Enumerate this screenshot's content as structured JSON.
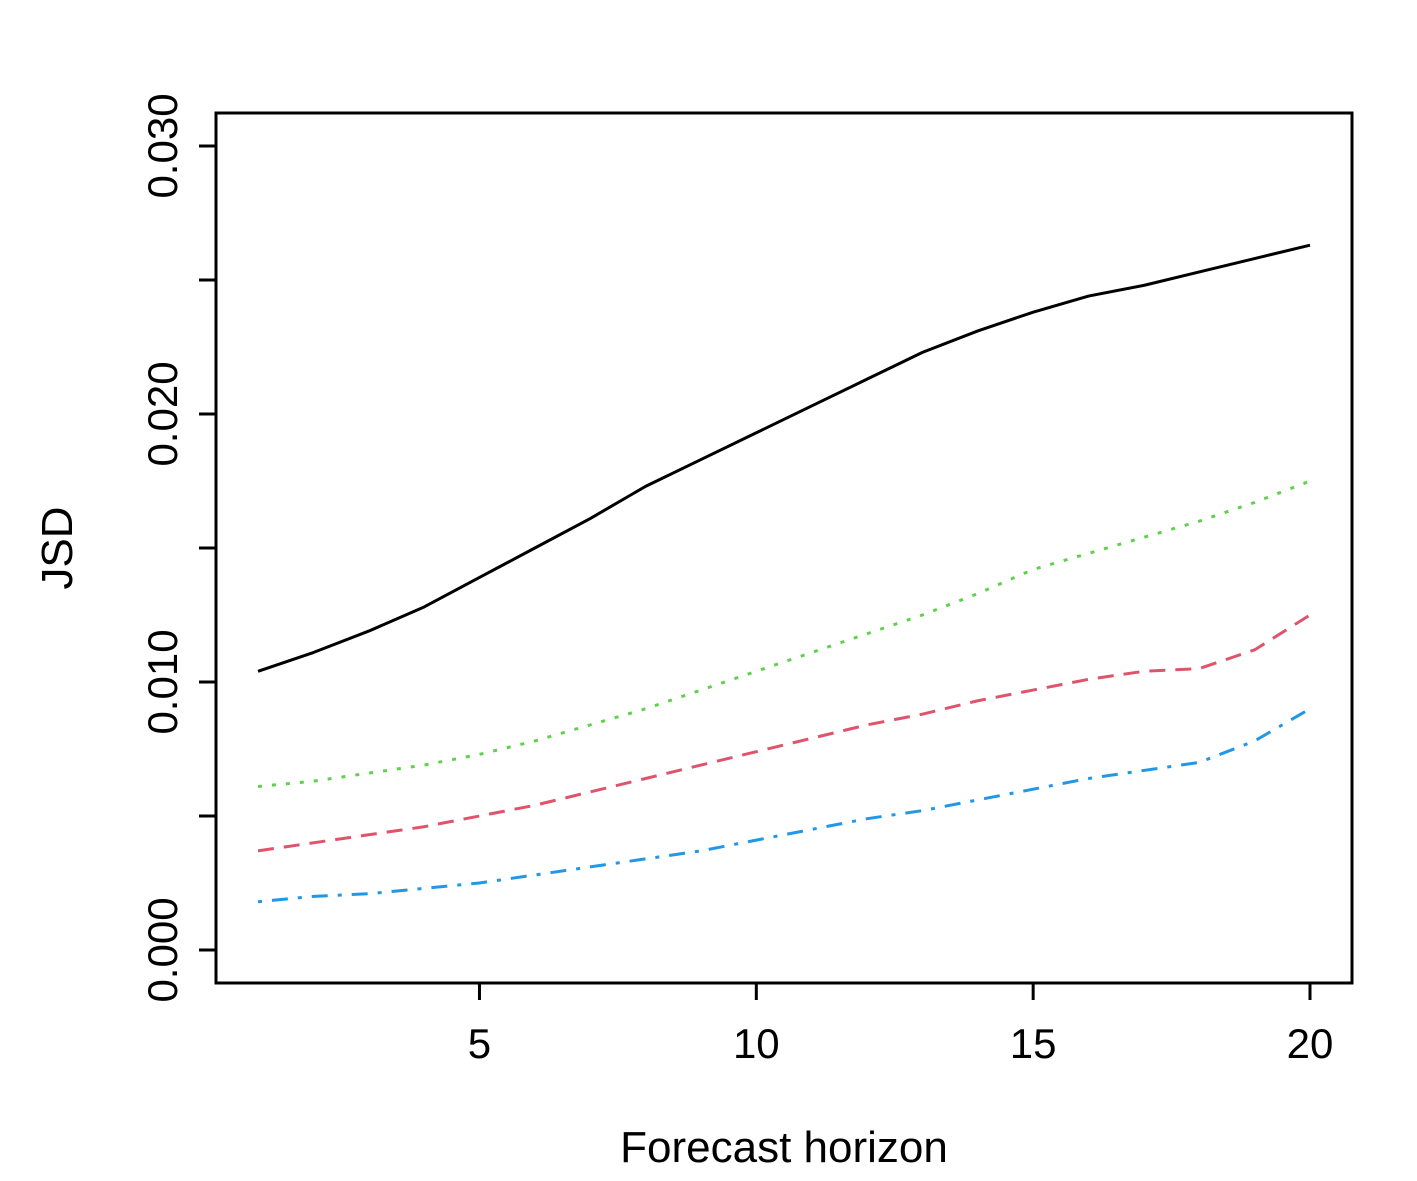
{
  "chart_data": {
    "type": "line",
    "title": "",
    "xlabel": "Forecast horizon",
    "ylabel": "JSD",
    "xlim": [
      0.5,
      20.8
    ],
    "ylim": [
      -0.0012,
      0.0312
    ],
    "x_ticks": [
      5,
      10,
      15,
      20
    ],
    "x_tick_labels": [
      "5",
      "10",
      "15",
      "20"
    ],
    "y_ticks": [
      0.0,
      0.005,
      0.01,
      0.015,
      0.02,
      0.025,
      0.03
    ],
    "y_tick_labels": [
      "0.000",
      "",
      "0.010",
      "",
      "0.020",
      "",
      "0.030"
    ],
    "grid": false,
    "legend": "none",
    "x": [
      1,
      2,
      3,
      4,
      5,
      6,
      7,
      8,
      9,
      10,
      11,
      12,
      13,
      14,
      15,
      16,
      17,
      18,
      19,
      20
    ],
    "series": [
      {
        "color": "#000000",
        "dash": "solid",
        "values": [
          0.0104,
          0.0111,
          0.0119,
          0.0128,
          0.0139,
          0.015,
          0.0161,
          0.0173,
          0.0183,
          0.0193,
          0.0203,
          0.0213,
          0.0223,
          0.0231,
          0.0238,
          0.0244,
          0.0248,
          0.0253,
          0.0258,
          0.0263
        ]
      },
      {
        "color": "#61D04F",
        "dash": "dotted",
        "values": [
          0.0061,
          0.0063,
          0.0066,
          0.0069,
          0.0073,
          0.0078,
          0.0084,
          0.009,
          0.0097,
          0.0104,
          0.0111,
          0.0118,
          0.0125,
          0.0133,
          0.0142,
          0.0148,
          0.0154,
          0.016,
          0.0167,
          0.0175
        ]
      },
      {
        "color": "#DF536B",
        "dash": "dashed",
        "values": [
          0.0037,
          0.004,
          0.0043,
          0.0046,
          0.005,
          0.0054,
          0.0059,
          0.0064,
          0.0069,
          0.0074,
          0.0079,
          0.0084,
          0.0088,
          0.0093,
          0.0097,
          0.0101,
          0.0104,
          0.0105,
          0.0112,
          0.0125
        ]
      },
      {
        "color": "#2297E6",
        "dash": "dotdash",
        "values": [
          0.0018,
          0.002,
          0.0021,
          0.0023,
          0.0025,
          0.0028,
          0.0031,
          0.0034,
          0.0037,
          0.0041,
          0.0045,
          0.0049,
          0.0052,
          0.0056,
          0.006,
          0.0064,
          0.0067,
          0.007,
          0.0078,
          0.009
        ]
      }
    ]
  }
}
